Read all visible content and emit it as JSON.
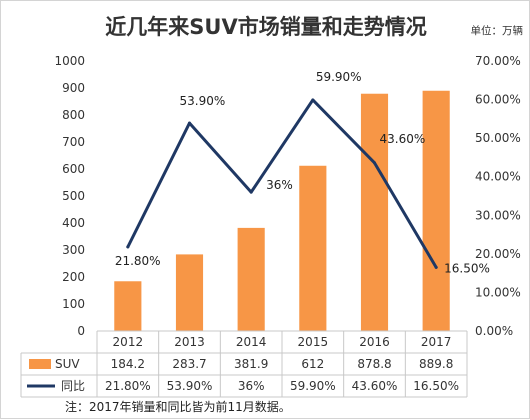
{
  "chart_data": {
    "type": "bar",
    "title": "近几年来SUV市场销量和走势情况",
    "unit_label": "单位：万辆",
    "categories": [
      "2012",
      "2013",
      "2014",
      "2015",
      "2016",
      "2017"
    ],
    "series": [
      {
        "name": "SUV",
        "kind": "bar",
        "axis": "left",
        "color": "#f79646",
        "values": [
          184.2,
          283.7,
          381.9,
          612,
          878.8,
          889.8
        ],
        "value_labels": [
          "184.2",
          "283.7",
          "381.9",
          "612",
          "878.8",
          "889.8"
        ]
      },
      {
        "name": "同比",
        "kind": "line",
        "axis": "right",
        "color": "#1f3864",
        "values": [
          21.8,
          53.9,
          36,
          59.9,
          43.6,
          16.5
        ],
        "value_labels": [
          "21.80%",
          "53.90%",
          "36%",
          "59.90%",
          "43.60%",
          "16.50%"
        ]
      }
    ],
    "y_left": {
      "min": 0,
      "max": 1000,
      "step": 100,
      "ticks": [
        "0",
        "100",
        "200",
        "300",
        "400",
        "500",
        "600",
        "700",
        "800",
        "900",
        "1000"
      ]
    },
    "y_right": {
      "min": 0,
      "max": 70,
      "step": 10,
      "ticks": [
        "0.00%",
        "10.00%",
        "20.00%",
        "30.00%",
        "40.00%",
        "50.00%",
        "60.00%",
        "70.00%"
      ]
    },
    "grid": false,
    "legend": "bottom data table",
    "note": "注：2017年销量和同比皆为前11月数据。"
  }
}
